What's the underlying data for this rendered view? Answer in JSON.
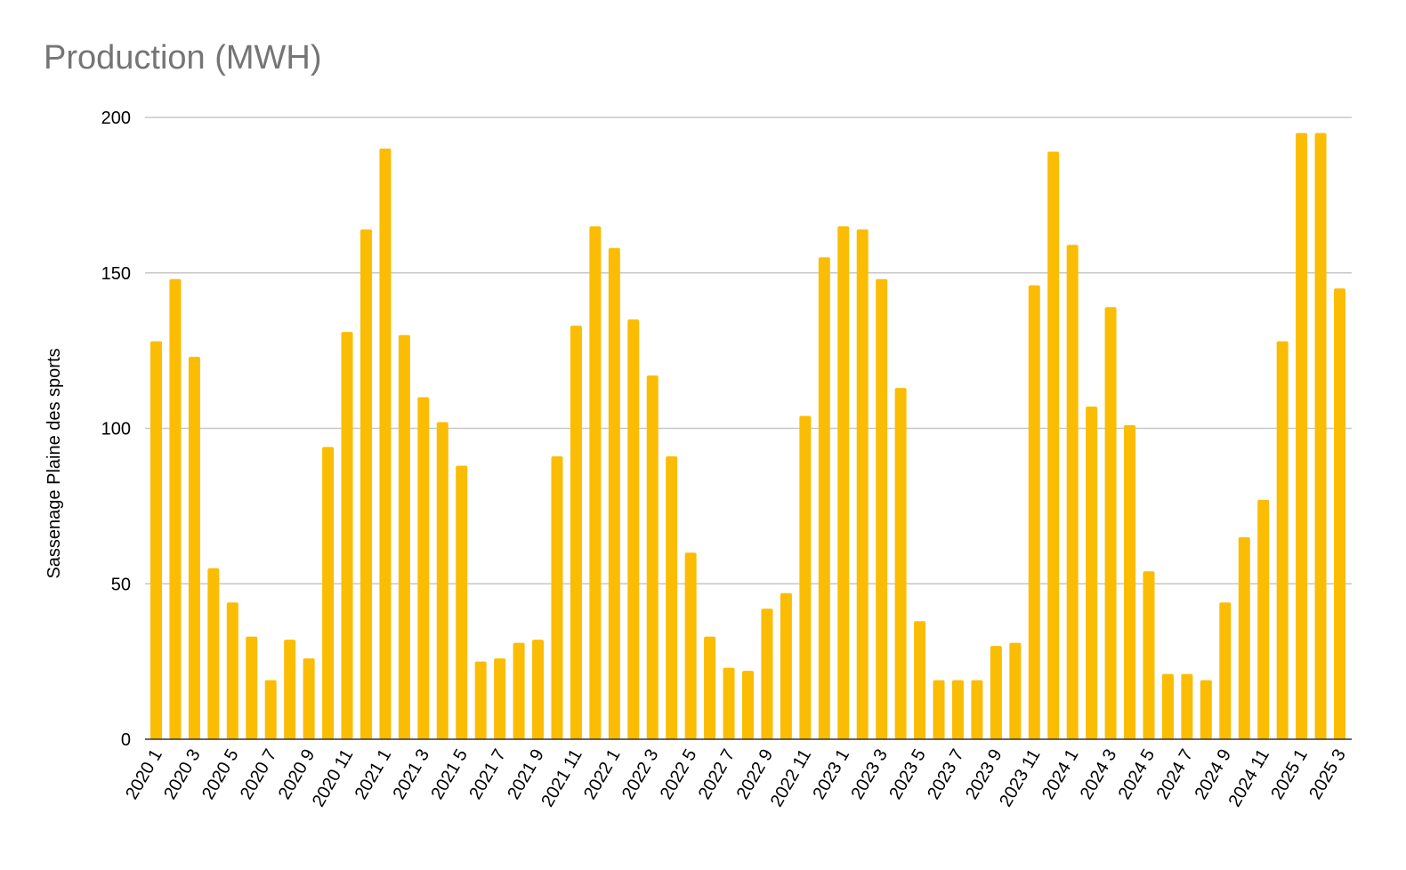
{
  "chart_data": {
    "type": "bar",
    "title": "Production (MWH)",
    "xlabel": "",
    "ylabel": "Sassenage Plaine des sports",
    "ylim": [
      0,
      200
    ],
    "yticks": [
      0,
      50,
      100,
      150,
      200
    ],
    "grid": true,
    "legend": "none",
    "bar_color": "#fbbc04",
    "categories": [
      "2020 1",
      "2020 2",
      "2020 3",
      "2020 4",
      "2020 5",
      "2020 6",
      "2020 7",
      "2020 8",
      "2020 9",
      "2020 10",
      "2020 11",
      "2020 12",
      "2021 1",
      "2021 2",
      "2021 3",
      "2021 4",
      "2021 5",
      "2021 6",
      "2021 7",
      "2021 8",
      "2021 9",
      "2021 10",
      "2021 11",
      "2021 12",
      "2022 1",
      "2022 2",
      "2022 3",
      "2022 4",
      "2022 5",
      "2022 6",
      "2022 7",
      "2022 8",
      "2022 9",
      "2022 10",
      "2022 11",
      "2022 12",
      "2023 1",
      "2023 2",
      "2023 3",
      "2023 4",
      "2023 5",
      "2023 6",
      "2023 7",
      "2023 8",
      "2023 9",
      "2023 10",
      "2023 11",
      "2023 12",
      "2024 1",
      "2024 2",
      "2024 3",
      "2024 4",
      "2024 5",
      "2024 6",
      "2024 7",
      "2024 8",
      "2024 9",
      "2024 10",
      "2024 11",
      "2024 12",
      "2025 1",
      "2025 2",
      "2025 3"
    ],
    "tick_labels": [
      "2020 1",
      "2020 3",
      "2020 5",
      "2020 7",
      "2020 9",
      "2020 11",
      "2021 1",
      "2021 3",
      "2021 5",
      "2021 7",
      "2021 9",
      "2021 11",
      "2022 1",
      "2022 3",
      "2022 5",
      "2022 7",
      "2022 9",
      "2022 11",
      "2023 1",
      "2023 3",
      "2023 5",
      "2023 7",
      "2023 9",
      "2023 11",
      "2024 1",
      "2024 3",
      "2024 5",
      "2024 7",
      "2024 9",
      "2024 11",
      "2025 1",
      "2025 3"
    ],
    "values": [
      128,
      148,
      123,
      55,
      44,
      33,
      19,
      32,
      26,
      94,
      131,
      164,
      190,
      130,
      110,
      102,
      88,
      25,
      26,
      31,
      32,
      91,
      133,
      165,
      158,
      135,
      117,
      91,
      60,
      33,
      23,
      22,
      42,
      47,
      104,
      155,
      165,
      164,
      148,
      113,
      38,
      19,
      19,
      19,
      30,
      31,
      146,
      189,
      159,
      107,
      139,
      101,
      54,
      21,
      21,
      19,
      44,
      65,
      77,
      128,
      195,
      195,
      145
    ]
  }
}
